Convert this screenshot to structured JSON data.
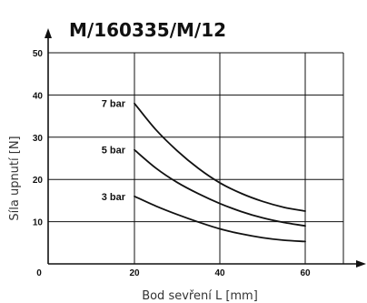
{
  "chart_data": {
    "type": "line",
    "title": "M/160335/M/12",
    "xlabel": "Bod sevření L [mm]",
    "ylabel": "Síla upnutí [N]",
    "xlim": [
      0,
      70
    ],
    "ylim": [
      0,
      50
    ],
    "x_ticks": [
      0,
      20,
      40,
      60
    ],
    "y_ticks": [
      10,
      20,
      30,
      40,
      50
    ],
    "grid": true,
    "series": [
      {
        "name": "7 bar",
        "x": [
          20,
          25,
          30,
          35,
          40,
          45,
          50,
          55,
          60
        ],
        "y": [
          38,
          31.8,
          26.8,
          22.6,
          19.2,
          16.7,
          14.8,
          13.4,
          12.5
        ]
      },
      {
        "name": "5 bar",
        "x": [
          20,
          25,
          30,
          35,
          40,
          45,
          50,
          55,
          60
        ],
        "y": [
          27,
          22.7,
          19.3,
          16.6,
          14.3,
          12.4,
          10.9,
          9.8,
          9
        ]
      },
      {
        "name": "3 bar",
        "x": [
          20,
          25,
          30,
          35,
          40,
          45,
          50,
          55,
          60
        ],
        "y": [
          16,
          13.7,
          11.7,
          9.9,
          8.3,
          7.1,
          6.2,
          5.6,
          5.3
        ]
      }
    ]
  }
}
